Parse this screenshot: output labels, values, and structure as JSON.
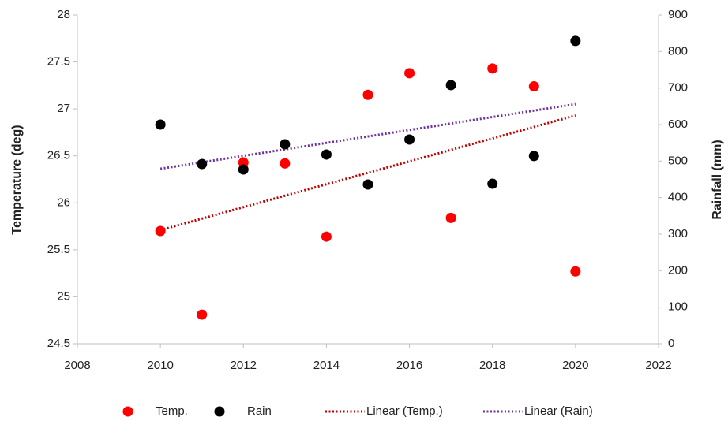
{
  "chart_data": {
    "type": "scatter",
    "xlabel": null,
    "ylabel": "Temperature (deg)",
    "y2label": "Rainfall (mm)",
    "xlim": [
      2008,
      2022
    ],
    "xticks": [
      2008,
      2010,
      2012,
      2014,
      2016,
      2018,
      2020,
      2022
    ],
    "ylim": [
      24.5,
      28
    ],
    "yticks": [
      24.5,
      25,
      25.5,
      26,
      26.5,
      27,
      27.5,
      28
    ],
    "y2lim": [
      0,
      900
    ],
    "y2ticks": [
      0,
      100,
      200,
      300,
      400,
      500,
      600,
      700,
      800,
      900
    ],
    "grid": false,
    "legend": "bottom",
    "series": [
      {
        "name": "Temp.",
        "color": "#ff0000",
        "kind": "marker",
        "axis": "y",
        "x": [
          2010,
          2011,
          2012,
          2013,
          2014,
          2015,
          2016,
          2017,
          2018,
          2019,
          2020
        ],
        "values": [
          25.7,
          24.81,
          26.43,
          26.42,
          25.64,
          27.15,
          27.38,
          25.84,
          27.43,
          27.24,
          25.27
        ]
      },
      {
        "name": "Rain",
        "color": "#000000",
        "kind": "marker",
        "axis": "y2",
        "x": [
          2010,
          2011,
          2012,
          2013,
          2014,
          2015,
          2016,
          2017,
          2018,
          2019,
          2020
        ],
        "values": [
          600,
          492,
          477,
          546,
          518,
          436,
          559,
          708,
          438,
          514,
          829
        ]
      },
      {
        "name": "Linear (Temp.)",
        "color": "#c00000",
        "kind": "trend",
        "axis": "y",
        "x": [
          2010,
          2020
        ],
        "values": [
          25.71,
          26.93
        ]
      },
      {
        "name": "Linear (Rain)",
        "color": "#7030a0",
        "kind": "trend",
        "axis": "y2",
        "x": [
          2010,
          2020
        ],
        "values": [
          479,
          656
        ]
      }
    ]
  }
}
